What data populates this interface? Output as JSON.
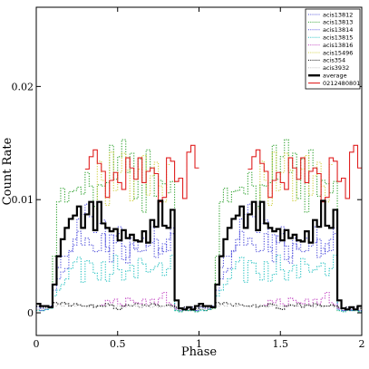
{
  "chart_data": {
    "type": "line",
    "xlabel": "Phase",
    "ylabel": "Count Rate",
    "xlim": [
      0,
      2
    ],
    "ylim": [
      -0.002,
      0.027
    ],
    "x_ticks": [
      0,
      0.5,
      1,
      1.5,
      2
    ],
    "x_tick_labels": [
      "0",
      "0.5",
      "1",
      "1.5",
      "2"
    ],
    "y_ticks": [
      0,
      0.01,
      0.02
    ],
    "y_tick_labels": [
      "0",
      "0.01",
      "0.02"
    ],
    "legend_position": "top-right",
    "grid": false,
    "bin_width": 0.025,
    "series": [
      {
        "name": "acis13812",
        "color": "#4a4ad8",
        "style": "dotted",
        "values": [
          0.0005,
          0.0004,
          0.0004,
          0.0006,
          0.0025,
          0.004,
          0.005,
          0.005,
          0.0055,
          0.0065,
          0.0072,
          0.006,
          0.0066,
          0.006,
          0.0054,
          0.0055,
          0.007,
          0.0058,
          0.0045,
          0.0068,
          0.007,
          0.0059,
          0.0044,
          0.0066,
          0.0056,
          0.0054,
          0.0055,
          0.0062,
          0.0076,
          0.0049,
          0.0057,
          0.0054,
          0.0065,
          0.007,
          0.0004,
          0.0002,
          0.0005,
          0.0003,
          0.0005,
          0.0002
        ]
      },
      {
        "name": "acis13813",
        "color": "#2ca02c",
        "style": "dotted",
        "values": [
          0.0003,
          0.0002,
          0.0003,
          0.0004,
          0.005,
          0.0098,
          0.011,
          0.0098,
          0.0107,
          0.0108,
          0.0111,
          0.0105,
          0.0124,
          0.0112,
          0.0094,
          0.0113,
          0.0112,
          0.0115,
          0.0148,
          0.0118,
          0.0138,
          0.0153,
          0.0124,
          0.0141,
          0.0101,
          0.0136,
          0.0089,
          0.0144,
          0.0128,
          0.0103,
          0.0117,
          0.0114,
          0.0106,
          0.0116,
          0.0002,
          0.0001,
          0.0003,
          0.0002,
          0.0002,
          0.0001
        ]
      },
      {
        "name": "acis13814",
        "color": "#5151e0",
        "style": "dotted",
        "values": [
          0.0003,
          0.0002,
          0.0003,
          0.0005,
          0.002,
          0.003,
          0.0036,
          0.0039,
          0.0054,
          0.006,
          0.0083,
          0.0087,
          0.0096,
          0.0085,
          0.0071,
          0.0079,
          0.0082,
          0.0054,
          0.0069,
          0.0062,
          0.0076,
          0.0047,
          0.0049,
          0.0061,
          0.0057,
          0.0063,
          0.0066,
          0.0059,
          0.0062,
          0.0065,
          0.0052,
          0.0061,
          0.0055,
          0.0075,
          0.0003,
          0.0002,
          0.0004,
          0.0002,
          0.0003,
          0.0002
        ]
      },
      {
        "name": "acis13815",
        "color": "#20c0c0",
        "style": "dotted",
        "values": [
          0.0002,
          0.0002,
          0.0003,
          0.0004,
          0.0015,
          0.002,
          0.0025,
          0.003,
          0.0039,
          0.0045,
          0.0049,
          0.0027,
          0.0046,
          0.0044,
          0.0035,
          0.0029,
          0.0045,
          0.0028,
          0.0034,
          0.0051,
          0.0038,
          0.0029,
          0.0037,
          0.0042,
          0.0031,
          0.0048,
          0.0043,
          0.0036,
          0.0038,
          0.0041,
          0.0044,
          0.0033,
          0.0039,
          0.0051,
          0.0002,
          0.0001,
          0.0002,
          0.0002,
          0.0002,
          0.0001
        ]
      },
      {
        "name": "acis13816",
        "color": "#c040c0",
        "style": "dotted",
        "values": [
          null,
          null,
          null,
          null,
          null,
          null,
          null,
          null,
          null,
          null,
          null,
          null,
          null,
          null,
          null,
          null,
          0.0007,
          0.0011,
          0.0009,
          0.0012,
          0.0008,
          0.0006,
          0.0013,
          0.0011,
          0.0009,
          0.0008,
          0.0012,
          0.0007,
          0.0012,
          0.0008,
          0.0013,
          0.0018,
          0.0009,
          0.0007,
          0.0004,
          null,
          null,
          null,
          null,
          null
        ]
      },
      {
        "name": "acis15496",
        "color": "#d0d040",
        "style": "dotted",
        "values": [
          null,
          null,
          null,
          null,
          null,
          null,
          null,
          null,
          null,
          null,
          null,
          null,
          null,
          null,
          0.0092,
          0.0134,
          0.0117,
          0.0095,
          0.0142,
          0.0108,
          0.0124,
          0.0141,
          0.0126,
          0.0099,
          0.0118,
          0.0127,
          0.0139,
          0.0104,
          0.0121,
          0.0133,
          0.0112,
          0.0098,
          0.0131,
          null,
          null,
          null,
          null,
          null,
          null,
          null
        ]
      },
      {
        "name": "acis354",
        "color": "#000000",
        "style": "dotted",
        "values": [
          0.0006,
          0.0005,
          0.0005,
          0.0005,
          0.0009,
          0.0008,
          0.0009,
          0.0008,
          0.0006,
          0.0008,
          0.0007,
          0.0006,
          0.0006,
          0.0007,
          0.0005,
          0.0006,
          0.0006,
          0.0008,
          0.0007,
          0.0004,
          0.0003,
          0.0006,
          0.0007,
          0.0006,
          0.0008,
          0.0005,
          0.0007,
          0.0006,
          0.0008,
          0.0007,
          0.0006,
          0.0006,
          0.0007,
          0.0006,
          0.0005,
          0.0004,
          0.0005,
          0.0004,
          0.0005,
          0.0004
        ]
      },
      {
        "name": "acis3932",
        "color": "#c0c0c0",
        "style": "dotted",
        "values": [
          0.0003,
          0.0003,
          0.0004,
          0.0004,
          0.0006,
          0.0007,
          0.0006,
          0.0008,
          0.0007,
          0.0006,
          0.0007,
          0.0006,
          0.0005,
          0.0007,
          0.0006,
          0.0007,
          0.0005,
          0.0006,
          0.0007,
          0.0006,
          0.0006,
          0.0005,
          0.0006,
          0.0007,
          0.0006,
          0.0005,
          0.0006,
          0.0007,
          0.0005,
          0.0006,
          0.0005,
          0.0006,
          0.0006,
          0.0005,
          0.0004,
          0.0003,
          0.0004,
          0.0003,
          0.0004,
          0.0003
        ]
      },
      {
        "name": "average",
        "color": "#000000",
        "style": "solid-thick",
        "values": [
          0.0008,
          0.0006,
          0.0006,
          0.0005,
          0.0025,
          0.005,
          0.0065,
          0.0075,
          0.0083,
          0.0086,
          0.0094,
          0.0075,
          0.0087,
          0.0098,
          0.0073,
          0.0098,
          0.0079,
          0.0075,
          0.0072,
          0.0074,
          0.0064,
          0.0073,
          0.0066,
          0.0069,
          0.0064,
          0.0063,
          0.0072,
          0.0062,
          0.0082,
          0.0076,
          0.0099,
          0.0077,
          0.0075,
          0.0091,
          0.0011,
          0.0004,
          0.0003,
          0.0005,
          0.0003,
          0.0006
        ]
      },
      {
        "name": "0212480801",
        "color": "#e02020",
        "style": "solid",
        "values": [
          null,
          null,
          null,
          null,
          null,
          null,
          null,
          null,
          null,
          null,
          null,
          null,
          0.0127,
          0.0138,
          0.0144,
          0.0132,
          0.0125,
          0.0102,
          0.0117,
          0.0124,
          0.0115,
          0.0109,
          0.0137,
          0.0128,
          0.0118,
          0.0137,
          0.0115,
          0.0125,
          0.0128,
          0.0123,
          0.0098,
          0.0102,
          0.0137,
          0.0134,
          0.0116,
          0.0119,
          0.0101,
          0.0142,
          0.0148,
          0.0128
        ]
      }
    ]
  }
}
